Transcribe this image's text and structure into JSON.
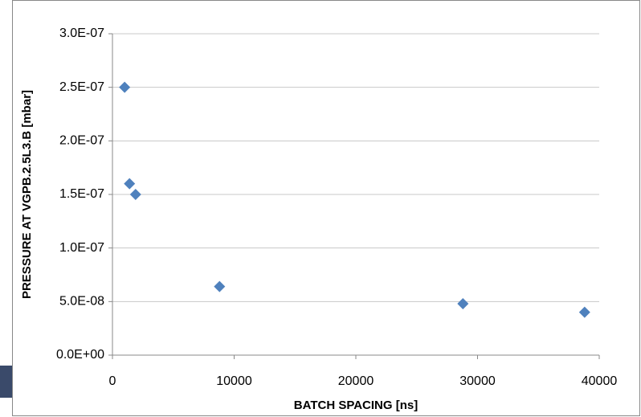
{
  "chart_data": {
    "type": "scatter",
    "x_label": "BATCH SPACING [ns]",
    "y_label": "PRESSURE AT VGPB.2.5L3.B [mbar]",
    "x": [
      1000,
      1400,
      1900,
      8800,
      28800,
      38800
    ],
    "values": [
      2.5e-07,
      1.6e-07,
      1.5e-07,
      6.4e-08,
      4.8e-08,
      4e-08
    ],
    "color": "#4f81bd",
    "xlim": [
      0,
      40000
    ],
    "xticks": [
      0,
      10000,
      20000,
      30000,
      40000
    ],
    "ylim": [
      0,
      3e-07
    ],
    "yticks": [
      {
        "value": 0,
        "label": "0.0E+00"
      },
      {
        "value": 5e-08,
        "label": "5.0E-08"
      },
      {
        "value": 1e-07,
        "label": "1.0E-07"
      },
      {
        "value": 1.5e-07,
        "label": "1.5E-07"
      },
      {
        "value": 2e-07,
        "label": "2.0E-07"
      },
      {
        "value": 2.5e-07,
        "label": "2.5E-07"
      },
      {
        "value": 3e-07,
        "label": "3.0E-07"
      }
    ],
    "grid": true
  }
}
